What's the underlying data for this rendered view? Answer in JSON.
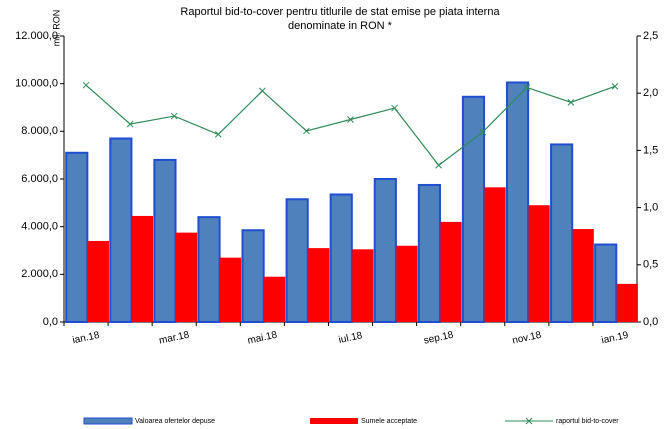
{
  "chart_data": {
    "type": "bar_line",
    "title": "Raportul bid-to-cover pentru titlurile de stat emise pe piata interna",
    "subtitle": "denominate in RON *",
    "y_label": "mil. RON",
    "categories": [
      "ian.18",
      null,
      "mar.18",
      null,
      "mai.18",
      null,
      "iul.18",
      null,
      "sep.18",
      null,
      "nov.18",
      null,
      "ian.19"
    ],
    "series": [
      {
        "name": "Valoarea ofertelor depuse",
        "color": "#4f81bd",
        "edge": "#1f4fd0",
        "kind": "bar",
        "values": [
          7100,
          7700,
          6800,
          4400,
          3850,
          5150,
          5350,
          6000,
          5750,
          9450,
          10050,
          7450,
          3250
        ]
      },
      {
        "name": "Sumele acceptate",
        "color": "#ff0000",
        "kind": "bar",
        "values": [
          3400,
          4450,
          3750,
          2700,
          1900,
          3100,
          3050,
          3200,
          4200,
          5650,
          4900,
          3900,
          1600
        ]
      },
      {
        "name": "raportul bid-to-cover",
        "color": "#2e8b57",
        "kind": "line",
        "axis": "y2",
        "values": [
          2.07,
          1.73,
          1.8,
          1.64,
          2.02,
          1.67,
          1.77,
          1.87,
          1.37,
          1.66,
          2.05,
          1.92,
          2.06
        ]
      }
    ],
    "ylim": [
      0,
      12000
    ],
    "yticks": [
      {
        "value": 0,
        "label": "0,0"
      },
      {
        "value": 2000,
        "label": "2.000,0"
      },
      {
        "value": 4000,
        "label": "4.000,0"
      },
      {
        "value": 6000,
        "label": "6.000,0"
      },
      {
        "value": 8000,
        "label": "8.000,0"
      },
      {
        "value": 10000,
        "label": "10.000,0"
      },
      {
        "value": 12000,
        "label": "12.000,0"
      }
    ],
    "y2lim": [
      0,
      2.5
    ],
    "y2ticks": [
      {
        "value": 0,
        "label": "0,0"
      },
      {
        "value": 0.5,
        "label": "0,5"
      },
      {
        "value": 1,
        "label": "1,0"
      },
      {
        "value": 1.5,
        "label": "1,5"
      },
      {
        "value": 2,
        "label": "2,0"
      },
      {
        "value": 2.5,
        "label": "2,5"
      }
    ]
  }
}
